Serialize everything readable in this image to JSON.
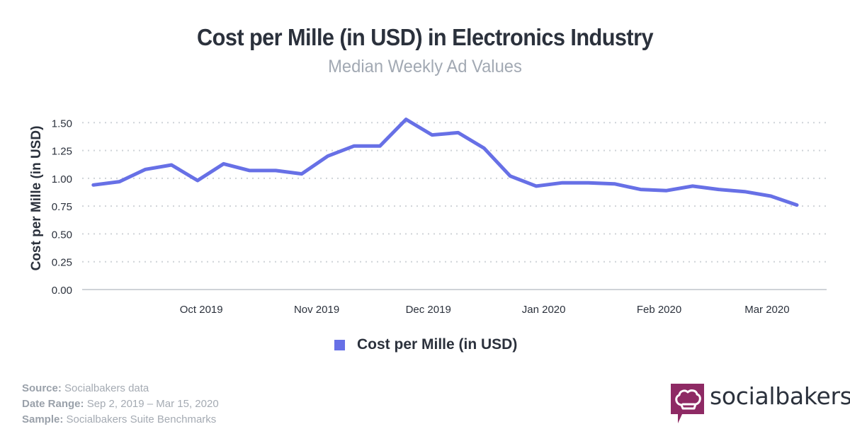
{
  "header": {
    "title": "Cost per Mille (in USD) in Electronics Industry",
    "subtitle": "Median Weekly Ad Values"
  },
  "colors": {
    "series": "#6770e6",
    "title": "#2b313c",
    "subtitle": "#a2a9b3",
    "grid": "#cfd3d8",
    "brand": "#8e2a64"
  },
  "chart_data": {
    "type": "line",
    "title": "Cost per Mille (in USD) in Electronics Industry",
    "subtitle": "Median Weekly Ad Values",
    "xlabel": "",
    "ylabel": "Cost per Mille (in USD)",
    "ylim": [
      0,
      1.5
    ],
    "yticks": [
      "0.00",
      "0.25",
      "0.50",
      "0.75",
      "1.00",
      "1.25",
      "1.50"
    ],
    "ytick_values": [
      0,
      0.25,
      0.5,
      0.75,
      1.0,
      1.25,
      1.5
    ],
    "xticks": [
      "Oct 2019",
      "Nov 2019",
      "Dec 2019",
      "Jan 2020",
      "Feb 2020",
      "Mar 2020"
    ],
    "xtick_dates": [
      "2019-10-01",
      "2019-11-01",
      "2019-12-01",
      "2020-01-01",
      "2020-02-01",
      "2020-03-01"
    ],
    "xrange": [
      "2019-08-30",
      "2020-03-17"
    ],
    "grid": true,
    "legend_position": "bottom",
    "x": [
      "2019-09-02",
      "2019-09-09",
      "2019-09-16",
      "2019-09-23",
      "2019-09-30",
      "2019-10-07",
      "2019-10-14",
      "2019-10-21",
      "2019-10-28",
      "2019-11-04",
      "2019-11-11",
      "2019-11-18",
      "2019-11-25",
      "2019-12-02",
      "2019-12-09",
      "2019-12-16",
      "2019-12-23",
      "2019-12-30",
      "2020-01-06",
      "2020-01-13",
      "2020-01-20",
      "2020-01-27",
      "2020-02-03",
      "2020-02-10",
      "2020-02-17",
      "2020-02-24",
      "2020-03-02",
      "2020-03-09"
    ],
    "series": [
      {
        "name": "Cost per Mille (in USD)",
        "values": [
          0.94,
          0.97,
          1.08,
          1.12,
          0.98,
          1.13,
          1.07,
          1.07,
          1.04,
          1.2,
          1.29,
          1.29,
          1.53,
          1.39,
          1.41,
          1.27,
          1.02,
          0.93,
          0.96,
          0.96,
          0.95,
          0.9,
          0.89,
          0.93,
          0.9,
          0.88,
          0.84,
          0.76
        ]
      }
    ]
  },
  "legend": {
    "label": "Cost per Mille (in USD)"
  },
  "footer": {
    "source_label": "Source:",
    "source_value": "Socialbakers data",
    "range_label": "Date Range:",
    "range_value": "Sep 2, 2019 – Mar 15, 2020",
    "sample_label": "Sample:",
    "sample_value": "Socialbakers Suite Benchmarks"
  },
  "logo": {
    "text": "socialbakers",
    "icon": "chef-hat-icon"
  }
}
